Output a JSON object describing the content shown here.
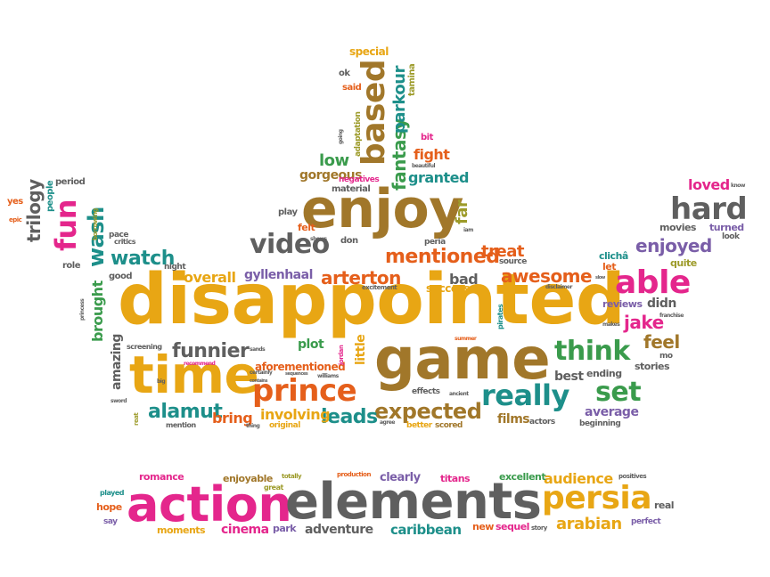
{
  "colors": {
    "gold": "#e8a614",
    "brown": "#a1772a",
    "pink": "#e4268c",
    "gray": "#5f5f5f",
    "green": "#3a9b4c",
    "teal": "#1d8f8a",
    "orange": "#e55f1b",
    "purple": "#7a5ea8",
    "olive": "#9d9b2a"
  },
  "words": {
    "disappointed": "disappointed",
    "game": "game",
    "time": "time",
    "enjoy": "enjoy",
    "action": "action",
    "elements": "elements",
    "persia": "persia",
    "prince": "prince",
    "really": "really",
    "video": "video",
    "hard": "hard",
    "able": "able",
    "based": "based",
    "think": "think",
    "set": "set",
    "expected": "expected",
    "mentioned": "mentioned",
    "arterton": "arterton",
    "watch": "watch",
    "funnier": "funnier",
    "alamut": "alamut",
    "leads": "leads",
    "enjoyed": "enjoyed",
    "awesome": "awesome",
    "jake": "jake",
    "feel": "feel",
    "wash": "wash",
    "fun": "fun",
    "trilogy": "trilogy",
    "loved": "loved",
    "fantasy": "fantasy",
    "parkour": "parkour",
    "low": "low",
    "gorgeous": "gorgeous",
    "fight": "fight",
    "granted": "granted",
    "far": "far",
    "treat": "treat",
    "bad": "bad",
    "success": "success",
    "gyllenhaal": "gyllenhaal",
    "overall": "overall",
    "brought": "brought",
    "amazing": "amazing",
    "plot": "plot",
    "little": "little",
    "aforementioned": "aforementioned",
    "involving": "involving",
    "bring": "bring",
    "films": "films",
    "average": "average",
    "best": "best",
    "ending": "ending",
    "stories": "stories",
    "reviews": "reviews",
    "didn": "didn",
    "movies": "movies",
    "turned": "turned",
    "look": "look",
    "clichd": "clichâ",
    "let": "let",
    "quite": "quite",
    "audience": "audience",
    "arabian": "arabian",
    "caribbean": "caribbean",
    "adventure": "adventure",
    "cinema": "cinema",
    "park": "park",
    "moments": "moments",
    "romance": "romance",
    "enjoyable": "enjoyable",
    "clearly": "clearly",
    "titans": "titans",
    "excellent": "excellent",
    "sequel": "sequel",
    "new": "new",
    "real": "real",
    "perfect": "perfect",
    "hope": "hope",
    "say": "say",
    "played": "played",
    "special": "special",
    "said": "said",
    "ok": "ok",
    "tamina": "tamina",
    "adaptation": "adaptation",
    "material": "material",
    "negatives": "negatives",
    "bit": "bit",
    "play": "play",
    "felt": "felt",
    "don": "don",
    "peria": "peria",
    "source": "source",
    "good": "good",
    "role": "role",
    "night": "night",
    "pace": "pace",
    "critics": "critics",
    "borrowing": "borrowing",
    "yes": "yes",
    "epic": "epic",
    "people": "people",
    "period": "period",
    "screening": "screening",
    "excitement": "excitement",
    "effects": "effects",
    "original": "original",
    "better": "better",
    "scored": "scored",
    "actors": "actors",
    "beginning": "beginning",
    "mention": "mention",
    "thing": "thing",
    "pirates": "pirates",
    "recommend": "recommend",
    "sword": "sword",
    "great": "great",
    "totally": "totally",
    "production": "production",
    "positives": "positives",
    "story": "story",
    "mo": "mo",
    "know": "know",
    "jordan": "jordan",
    "williams": "williams",
    "certainly": "certainly",
    "ancient": "ancient",
    "agree": "agree",
    "summer": "summer",
    "beautiful": "beautiful",
    "going": "going",
    "shows": "shows",
    "iam": "iam",
    "makes": "makes",
    "franchise": "franchise",
    "disclaimer": "disclaimer",
    "princess": "princess",
    "seen": "seen",
    "sands": "sands",
    "sequences": "sequences",
    "contains": "contains",
    "big": "big",
    "real2": "reat",
    "slow": "slow"
  }
}
